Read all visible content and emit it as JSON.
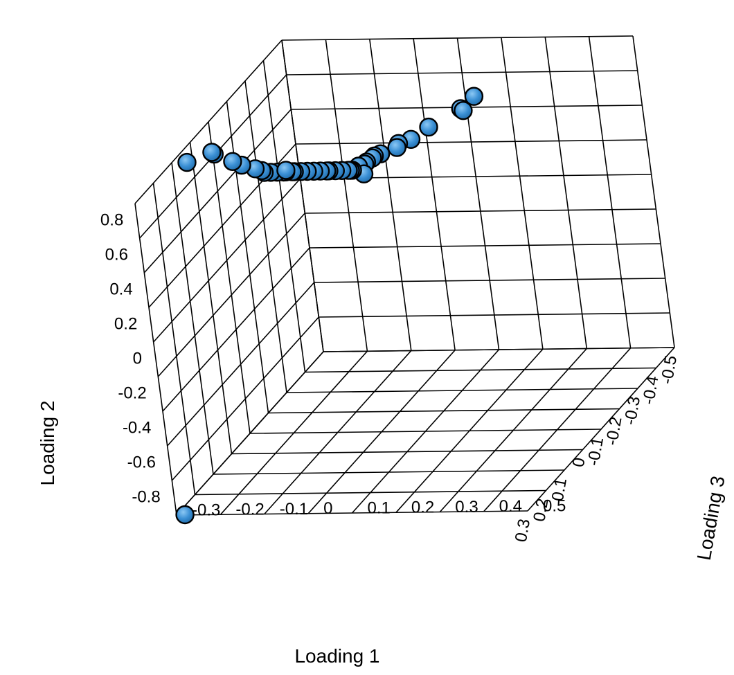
{
  "chart_data": {
    "type": "scatter",
    "title": "",
    "xlabel": "Loading 1",
    "ylabel": "Loading 2",
    "zlabel": "Loading 3",
    "xlim": [
      -0.5,
      0.3
    ],
    "ylim": [
      -0.8,
      0.8
    ],
    "zlim": [
      -0.3,
      0.5
    ],
    "x_ticks": [
      "-0.5",
      "-0.4",
      "-0.3",
      "-0.2",
      "-0.1",
      "0",
      "0.1",
      "0.2",
      "0.3"
    ],
    "y_ticks": [
      "-0.8",
      "-0.6",
      "-0.4",
      "-0.2",
      "0",
      "0.2",
      "0.4",
      "0.6",
      "0.8"
    ],
    "z_ticks": [
      "-0.3",
      "-0.2",
      "-0.1",
      "0",
      "0.1",
      "0.2",
      "0.3",
      "0.4",
      "0.5"
    ],
    "grid": true,
    "marker_color": "#3a8fd4",
    "points": [
      {
        "x": 0.26,
        "y": -0.84,
        "z": -0.3
      },
      {
        "x": -0.5,
        "y": 0.5,
        "z": 0.12
      },
      {
        "x": -0.45,
        "y": 0.49,
        "z": 0.11
      },
      {
        "x": -0.44,
        "y": 0.49,
        "z": 0.12
      },
      {
        "x": -0.37,
        "y": 0.48,
        "z": 0.07
      },
      {
        "x": -0.32,
        "y": 0.47,
        "z": 0.05
      },
      {
        "x": -0.3,
        "y": 0.47,
        "z": 0.03
      },
      {
        "x": -0.29,
        "y": 0.46,
        "z": 0.03
      },
      {
        "x": -0.25,
        "y": 0.47,
        "z": 0.01
      },
      {
        "x": -0.24,
        "y": 0.47,
        "z": 0.0
      },
      {
        "x": -0.23,
        "y": 0.47,
        "z": 0.0
      },
      {
        "x": -0.22,
        "y": 0.46,
        "z": -0.01
      },
      {
        "x": -0.21,
        "y": 0.46,
        "z": -0.01
      },
      {
        "x": -0.2,
        "y": 0.46,
        "z": -0.02
      },
      {
        "x": -0.2,
        "y": 0.42,
        "z": -0.01
      },
      {
        "x": -0.19,
        "y": 0.45,
        "z": -0.03
      },
      {
        "x": -0.18,
        "y": 0.46,
        "z": -0.03
      },
      {
        "x": -0.17,
        "y": 0.47,
        "z": -0.03
      },
      {
        "x": -0.16,
        "y": 0.48,
        "z": -0.04
      },
      {
        "x": -0.15,
        "y": 0.49,
        "z": -0.05
      },
      {
        "x": -0.14,
        "y": 0.5,
        "z": -0.06
      },
      {
        "x": -0.13,
        "y": 0.51,
        "z": -0.06
      },
      {
        "x": -0.12,
        "y": 0.52,
        "z": -0.07
      },
      {
        "x": -0.11,
        "y": 0.53,
        "z": -0.08
      },
      {
        "x": -0.1,
        "y": 0.54,
        "z": -0.09
      },
      {
        "x": -0.09,
        "y": 0.55,
        "z": -0.1
      },
      {
        "x": -0.08,
        "y": 0.56,
        "z": -0.11
      },
      {
        "x": -0.07,
        "y": 0.57,
        "z": -0.11
      },
      {
        "x": -0.06,
        "y": 0.58,
        "z": -0.12
      },
      {
        "x": -0.05,
        "y": 0.59,
        "z": -0.12
      },
      {
        "x": -0.04,
        "y": 0.6,
        "z": -0.13
      },
      {
        "x": -0.03,
        "y": 0.61,
        "z": -0.14
      },
      {
        "x": -0.02,
        "y": 0.62,
        "z": -0.15
      },
      {
        "x": -0.01,
        "y": 0.64,
        "z": -0.15
      },
      {
        "x": 0.0,
        "y": 0.66,
        "z": -0.16
      },
      {
        "x": -0.02,
        "y": 0.63,
        "z": -0.1
      },
      {
        "x": 0.02,
        "y": 0.7,
        "z": -0.18
      },
      {
        "x": 0.04,
        "y": 0.74,
        "z": -0.19
      },
      {
        "x": 0.06,
        "y": 0.8,
        "z": -0.22
      },
      {
        "x": 0.07,
        "y": 0.82,
        "z": -0.22
      },
      {
        "x": 0.09,
        "y": 0.79,
        "z": -0.27
      }
    ]
  }
}
